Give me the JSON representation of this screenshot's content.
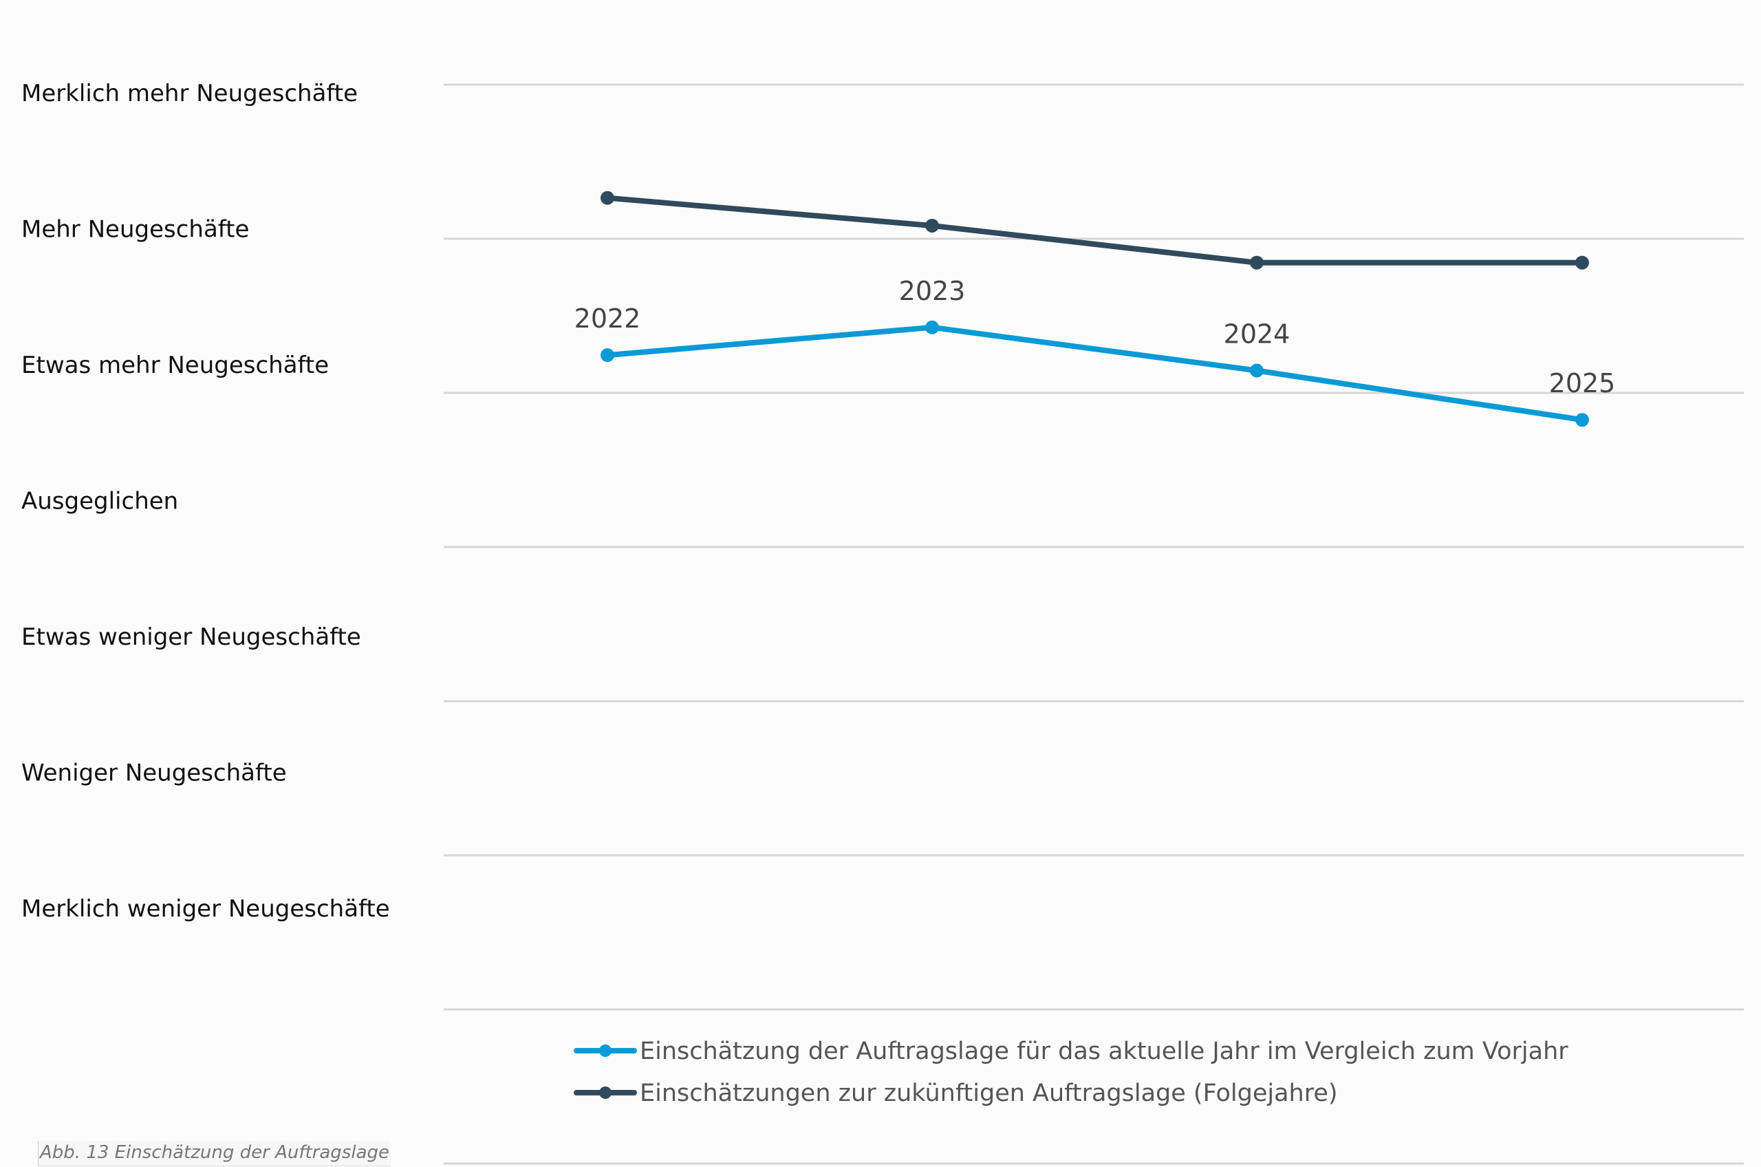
{
  "chart_data": {
    "type": "line",
    "y_categories": [
      "Merklich mehr Neugeschäfte",
      "Mehr Neugeschäfte",
      "Etwas mehr Neugeschäfte",
      "Ausgeglichen",
      "Etwas weniger Neugeschäfte",
      "Weniger Neugeschäfte",
      "Merklich weniger Neugeschäfte"
    ],
    "y_scale": "1 = Merklich mehr Neugeschäfte … 7 = Merklich weniger Neugeschäfte",
    "ylim": [
      0.55,
      7.3
    ],
    "x": [
      "2022",
      "2023",
      "2024",
      "2025"
    ],
    "series": [
      {
        "name": "Einschätzung der Auftragslage für das aktuelle Jahr im Vergleich zum Vorjahr",
        "color": "#0a9ad6",
        "values": [
          2.65,
          2.47,
          2.75,
          3.07
        ],
        "point_labels": [
          "2022",
          "2023",
          "2024",
          "2025"
        ]
      },
      {
        "name": "Einschätzungen zur zukünftigen Auftragslage (Folgejahre)",
        "color": "#2f4a5c",
        "values": [
          1.63,
          1.81,
          2.05,
          2.05
        ]
      }
    ],
    "grid": true,
    "legend_position": "bottom"
  },
  "caption": "Abb. 13 Einschätzung der Auftragslage"
}
